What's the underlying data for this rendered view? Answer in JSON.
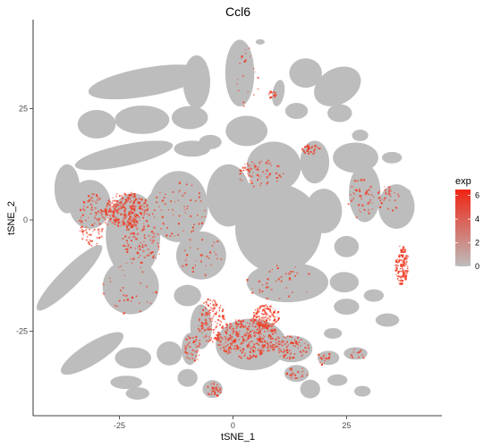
{
  "chart_data": {
    "type": "scatter",
    "title": "Ccl6",
    "xlabel": "tSNE_1",
    "ylabel": "tSNE_2",
    "xlim": [
      -44,
      46
    ],
    "ylim": [
      -44,
      45
    ],
    "xticks": [
      -25,
      0,
      25
    ],
    "xtick_labels": [
      "-25",
      "0",
      "25"
    ],
    "yticks": [
      -25,
      0,
      25
    ],
    "ytick_labels": [
      "-25",
      "0",
      "25"
    ],
    "grid": false,
    "legend": {
      "title": "exp",
      "placement": "right",
      "range": [
        0,
        6.5
      ],
      "ticks": [
        0,
        2,
        4,
        6
      ],
      "tick_labels": [
        "0",
        "2",
        "4",
        "6"
      ],
      "low_color": "#bdbdbd",
      "high_color": "#ef2413"
    },
    "colors": {
      "background_points": "#bdbdbd",
      "expressed_points": "#ef3b23",
      "panel_background": "#ffffff",
      "axis": "#000000"
    },
    "clusters_grey": [
      {
        "cx": -19,
        "cy": 31,
        "rx": 13,
        "ry": 3.2,
        "rot": -10
      },
      {
        "cx": -8,
        "cy": 31,
        "rx": 3,
        "ry": 6,
        "rot": 0
      },
      {
        "cx": 1.5,
        "cy": 33,
        "rx": 3.2,
        "ry": 7.5,
        "rot": 0
      },
      {
        "cx": 6,
        "cy": 40,
        "rx": 1,
        "ry": 0.6,
        "rot": 0
      },
      {
        "cx": 10,
        "cy": 28.5,
        "rx": 1.3,
        "ry": 3,
        "rot": 10
      },
      {
        "cx": 16,
        "cy": 33,
        "rx": 3.6,
        "ry": 3.3,
        "rot": 0
      },
      {
        "cx": 23,
        "cy": 30,
        "rx": 5.5,
        "ry": 4,
        "rot": -30
      },
      {
        "cx": 14,
        "cy": 24.5,
        "rx": 2.5,
        "ry": 1.8,
        "rot": 0
      },
      {
        "cx": -30,
        "cy": 21.5,
        "rx": 4.2,
        "ry": 3.2,
        "rot": 0
      },
      {
        "cx": -20,
        "cy": 22.5,
        "rx": 6,
        "ry": 3.2,
        "rot": 0
      },
      {
        "cx": -9.5,
        "cy": 23,
        "rx": 4,
        "ry": 2.6,
        "rot": 0
      },
      {
        "cx": 3,
        "cy": 20,
        "rx": 4.6,
        "ry": 3.4,
        "rot": 0
      },
      {
        "cx": -5,
        "cy": 17.5,
        "rx": 2.5,
        "ry": 1.6,
        "rot": 0
      },
      {
        "cx": 9,
        "cy": 12,
        "rx": 6,
        "ry": 5.6,
        "rot": 0
      },
      {
        "cx": 18,
        "cy": 13,
        "rx": 3.2,
        "ry": 4.8,
        "rot": 0
      },
      {
        "cx": 27,
        "cy": 14,
        "rx": 5,
        "ry": 3.4,
        "rot": 0
      },
      {
        "cx": 23.5,
        "cy": 24,
        "rx": 2.7,
        "ry": 2,
        "rot": 0
      },
      {
        "cx": 28,
        "cy": 19,
        "rx": 1.8,
        "ry": 1.3,
        "rot": 0
      },
      {
        "cx": 35,
        "cy": 14,
        "rx": 2.2,
        "ry": 1.3,
        "rot": 0
      },
      {
        "cx": -24,
        "cy": 14.5,
        "rx": 11,
        "ry": 2.4,
        "rot": -12
      },
      {
        "cx": -9,
        "cy": 16,
        "rx": 4,
        "ry": 1.8,
        "rot": 0
      },
      {
        "cx": -36.5,
        "cy": 7,
        "rx": 2.8,
        "ry": 5.5,
        "rot": 0
      },
      {
        "cx": -31.5,
        "cy": 3.5,
        "rx": 4.6,
        "ry": 5.5,
        "rot": 0
      },
      {
        "cx": -16,
        "cy": 4,
        "rx": 3,
        "ry": 2.6,
        "rot": 0
      },
      {
        "cx": -12,
        "cy": 3,
        "rx": 6.5,
        "ry": 8,
        "rot": 0
      },
      {
        "cx": -1,
        "cy": 5.5,
        "rx": 4.8,
        "ry": 7,
        "rot": 0
      },
      {
        "cx": 4,
        "cy": 6,
        "rx": 2.4,
        "ry": 2.4,
        "rot": 0
      },
      {
        "cx": 10,
        "cy": -2,
        "rx": 9.5,
        "ry": 10,
        "rot": 0
      },
      {
        "cx": 20,
        "cy": 2,
        "rx": 4,
        "ry": 5,
        "rot": 0
      },
      {
        "cx": 25,
        "cy": -6,
        "rx": 2.7,
        "ry": 2.4,
        "rot": 0
      },
      {
        "cx": 29,
        "cy": 6,
        "rx": 3.5,
        "ry": 6.5,
        "rot": 0
      },
      {
        "cx": 36,
        "cy": 3,
        "rx": 4,
        "ry": 5,
        "rot": 0
      },
      {
        "cx": 37,
        "cy": 6,
        "rx": 2.2,
        "ry": 1.3,
        "rot": 0
      },
      {
        "cx": -22,
        "cy": -3.5,
        "rx": 6,
        "ry": 9.5,
        "rot": 0
      },
      {
        "cx": -7,
        "cy": -8,
        "rx": 5.5,
        "ry": 5.4,
        "rot": 0
      },
      {
        "cx": 12,
        "cy": -14,
        "rx": 9,
        "ry": 4.5,
        "rot": 0
      },
      {
        "cx": -36,
        "cy": -13,
        "rx": 10,
        "ry": 2.2,
        "rot": -45
      },
      {
        "cx": -22.5,
        "cy": -15,
        "rx": 6.2,
        "ry": 6.2,
        "rot": 0
      },
      {
        "cx": -10,
        "cy": -17,
        "rx": 3,
        "ry": 2.4,
        "rot": 0
      },
      {
        "cx": 24.5,
        "cy": -14,
        "rx": 3.2,
        "ry": 2.3,
        "rot": 0
      },
      {
        "cx": 25,
        "cy": -19.5,
        "rx": 2.8,
        "ry": 1.8,
        "rot": 0
      },
      {
        "cx": 31,
        "cy": -17,
        "rx": 2.2,
        "ry": 1.4,
        "rot": 0
      },
      {
        "cx": 34,
        "cy": -22.5,
        "rx": 2.6,
        "ry": 1.5,
        "rot": 0
      },
      {
        "cx": -31,
        "cy": -30,
        "rx": 8,
        "ry": 2.4,
        "rot": -32
      },
      {
        "cx": -22,
        "cy": -31,
        "rx": 4,
        "ry": 2.4,
        "rot": 0
      },
      {
        "cx": -14,
        "cy": -30,
        "rx": 2.8,
        "ry": 2.7,
        "rot": 0
      },
      {
        "cx": -7,
        "cy": -24,
        "rx": 2.4,
        "ry": 5,
        "rot": 0
      },
      {
        "cx": -9.5,
        "cy": -29,
        "rx": 1.8,
        "ry": 3.6,
        "rot": 0
      },
      {
        "cx": -23.5,
        "cy": -36.5,
        "rx": 3.5,
        "ry": 1.5,
        "rot": 0
      },
      {
        "cx": -21,
        "cy": -39,
        "rx": 2.6,
        "ry": 1.4,
        "rot": 0
      },
      {
        "cx": -10,
        "cy": -35.5,
        "rx": 2.2,
        "ry": 2,
        "rot": 0
      },
      {
        "cx": -4.5,
        "cy": -38,
        "rx": 2.2,
        "ry": 2,
        "rot": 0
      },
      {
        "cx": 4,
        "cy": -28,
        "rx": 7.8,
        "ry": 5.8,
        "rot": 0
      },
      {
        "cx": 13,
        "cy": -29,
        "rx": 4.5,
        "ry": 3,
        "rot": 0
      },
      {
        "cx": 14,
        "cy": -34.5,
        "rx": 2.7,
        "ry": 1.9,
        "rot": 0
      },
      {
        "cx": 17,
        "cy": -38,
        "rx": 2.2,
        "ry": 2.1,
        "rot": 0
      },
      {
        "cx": 23,
        "cy": -36,
        "rx": 2.2,
        "ry": 1.3,
        "rot": 0
      },
      {
        "cx": 21,
        "cy": -31,
        "rx": 2.4,
        "ry": 1.6,
        "rot": 0
      },
      {
        "cx": 27,
        "cy": -30,
        "rx": 2.6,
        "ry": 1.4,
        "rot": 0
      },
      {
        "cx": 28.5,
        "cy": -38.5,
        "rx": 1.8,
        "ry": 1.2,
        "rot": 0
      },
      {
        "cx": 22,
        "cy": -25.5,
        "rx": 2,
        "ry": 1.2,
        "rot": 0
      }
    ],
    "clusters_expressed": [
      {
        "cx": -23.5,
        "cy": 2.5,
        "rx": 4.8,
        "ry": 4,
        "density": 0.6
      },
      {
        "cx": -31,
        "cy": 0,
        "rx": 3.2,
        "ry": 6,
        "density": 0.22
      },
      {
        "cx": -20,
        "cy": -4,
        "rx": 4.5,
        "ry": 6,
        "density": 0.14
      },
      {
        "cx": 37,
        "cy": -10,
        "rx": 1.4,
        "ry": 4.5,
        "density": 0.9
      },
      {
        "cx": 7,
        "cy": -21.5,
        "rx": 3,
        "ry": 2.6,
        "density": 0.72
      },
      {
        "cx": 3,
        "cy": -26.5,
        "rx": 7,
        "ry": 4.5,
        "density": 0.45
      },
      {
        "cx": -5,
        "cy": -22.5,
        "rx": 3,
        "ry": 5,
        "density": 0.38
      },
      {
        "cx": -9,
        "cy": -28.5,
        "rx": 1.8,
        "ry": 3.3,
        "density": 0.28
      },
      {
        "cx": 12.5,
        "cy": -28.5,
        "rx": 4,
        "ry": 2.6,
        "density": 0.3
      },
      {
        "cx": 17,
        "cy": 16,
        "rx": 2,
        "ry": 1.1,
        "density": 0.7
      },
      {
        "cx": 6,
        "cy": 10.5,
        "rx": 5,
        "ry": 3.2,
        "density": 0.2
      },
      {
        "cx": 28,
        "cy": 5,
        "rx": 3,
        "ry": 4.5,
        "density": 0.14
      },
      {
        "cx": 34,
        "cy": 5,
        "rx": 2.5,
        "ry": 3,
        "density": 0.18
      },
      {
        "cx": 8.5,
        "cy": 28.5,
        "rx": 1,
        "ry": 1.3,
        "density": 0.6
      },
      {
        "cx": -4.5,
        "cy": -38,
        "rx": 1.8,
        "ry": 1.8,
        "density": 0.42
      },
      {
        "cx": 14,
        "cy": -34.5,
        "rx": 2.4,
        "ry": 1.6,
        "density": 0.22
      },
      {
        "cx": 20,
        "cy": -31,
        "rx": 2,
        "ry": 1.4,
        "density": 0.25
      },
      {
        "cx": 27,
        "cy": -30,
        "rx": 2.2,
        "ry": 1.2,
        "density": 0.2
      },
      {
        "cx": -12,
        "cy": 2,
        "rx": 6,
        "ry": 7,
        "density": 0.06
      },
      {
        "cx": 10,
        "cy": -14,
        "rx": 8,
        "ry": 4,
        "density": 0.05
      },
      {
        "cx": -7,
        "cy": -8,
        "rx": 5,
        "ry": 5,
        "density": 0.05
      },
      {
        "cx": 3,
        "cy": 32,
        "rx": 2.5,
        "ry": 7,
        "density": 0.05
      },
      {
        "cx": -23,
        "cy": -15,
        "rx": 6,
        "ry": 6,
        "density": 0.04
      }
    ]
  }
}
